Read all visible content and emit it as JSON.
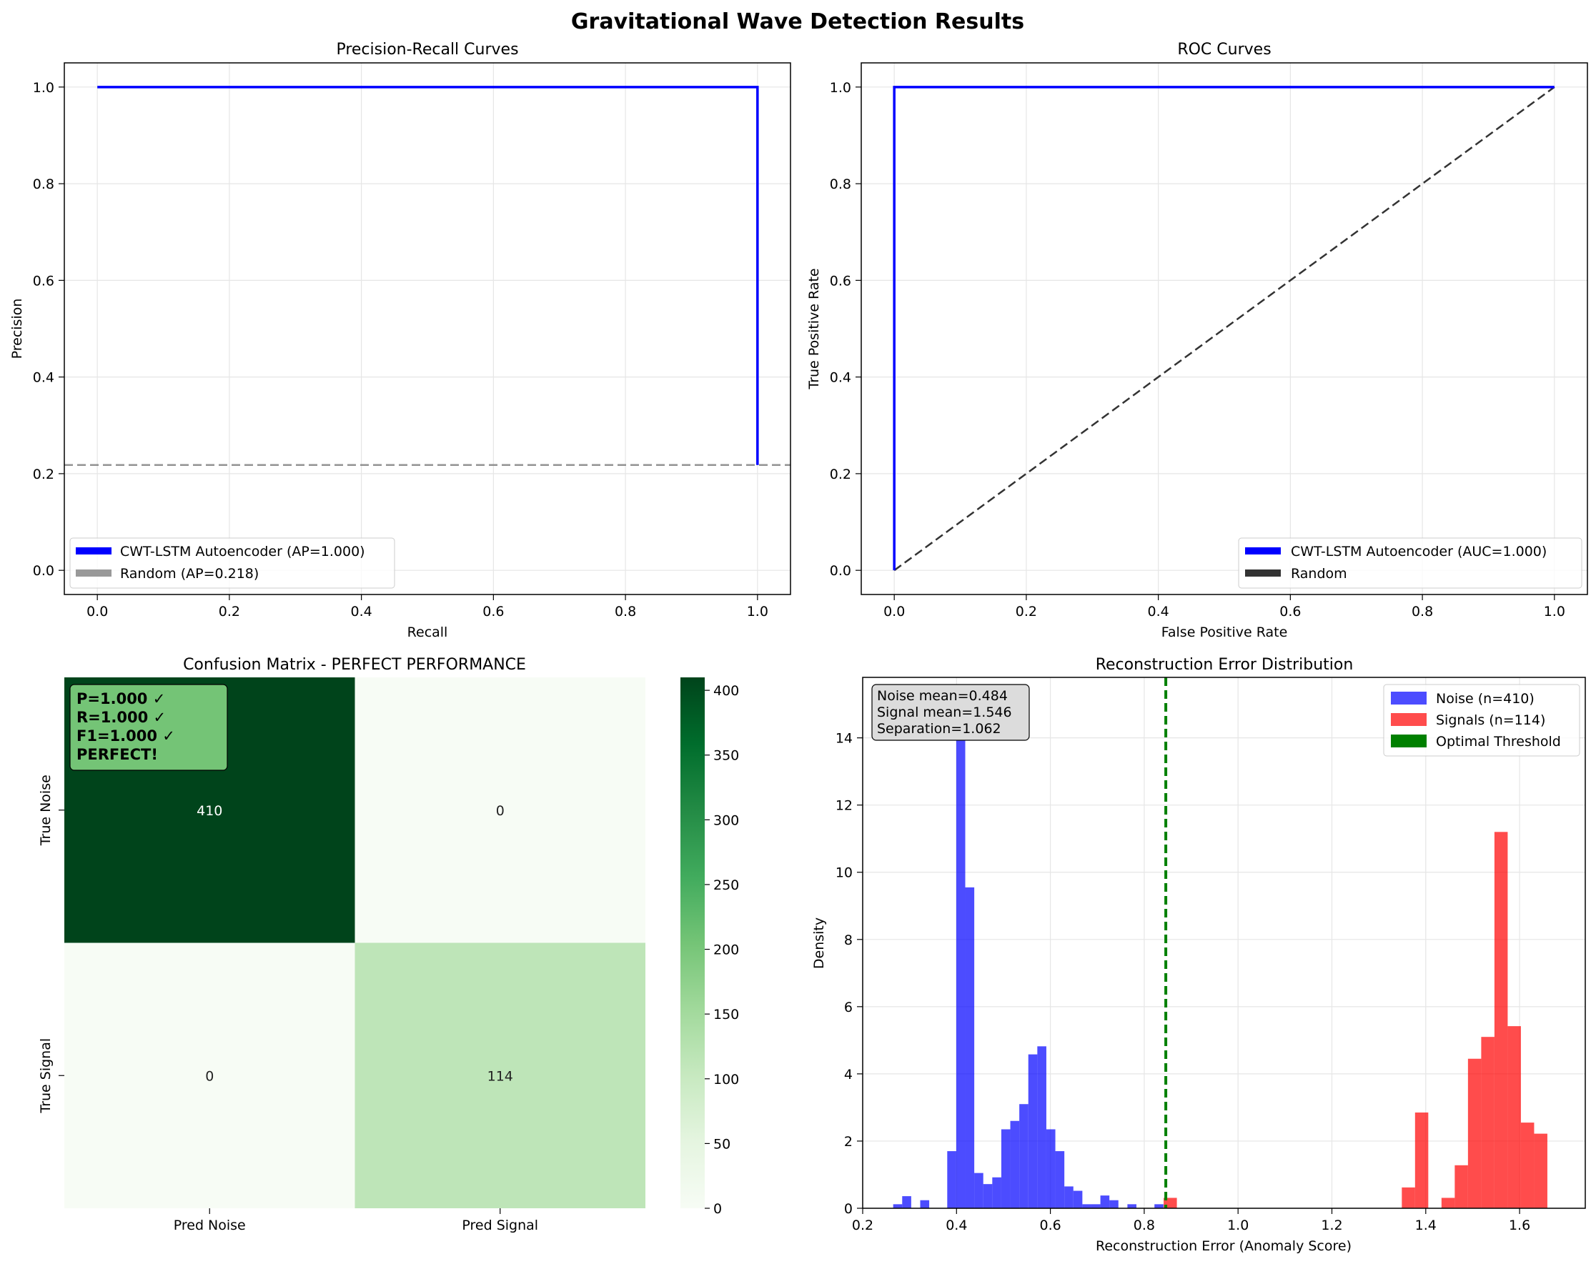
{
  "figure": {
    "title": "Gravitational Wave Detection Results"
  },
  "colors": {
    "blue": "#0000ff",
    "red": "#ff0000",
    "green": "#008000",
    "gray": "#808080",
    "darkgray": "#333333",
    "grid": "#e6e6e6"
  },
  "chart_data": [
    {
      "id": "pr",
      "type": "line",
      "title": "Precision-Recall Curves",
      "xlabel": "Recall",
      "ylabel": "Precision",
      "xlim": [
        -0.05,
        1.05
      ],
      "ylim": [
        -0.05,
        1.05
      ],
      "xticks": [
        0.0,
        0.2,
        0.4,
        0.6,
        0.8,
        1.0
      ],
      "yticks": [
        0.0,
        0.2,
        0.4,
        0.6,
        0.8,
        1.0
      ],
      "tick_labels_x": [
        "0.0",
        "0.2",
        "0.4",
        "0.6",
        "0.8",
        "1.0"
      ],
      "tick_labels_y": [
        "0.0",
        "0.2",
        "0.4",
        "0.6",
        "0.8",
        "1.0"
      ],
      "grid": true,
      "legend_position": "lower-left",
      "series": [
        {
          "name": "CWT-LSTM Autoencoder (AP=1.000)",
          "color": "#0000ff",
          "style": "solid",
          "x": [
            0.0,
            1.0,
            1.0
          ],
          "y": [
            1.0,
            1.0,
            0.218
          ]
        },
        {
          "name": "Random (AP=0.218)",
          "color": "#808080",
          "style": "dashed",
          "hline": 0.218
        }
      ]
    },
    {
      "id": "roc",
      "type": "line",
      "title": "ROC Curves",
      "xlabel": "False Positive Rate",
      "ylabel": "True Positive Rate",
      "xlim": [
        -0.05,
        1.05
      ],
      "ylim": [
        -0.05,
        1.05
      ],
      "xticks": [
        0.0,
        0.2,
        0.4,
        0.6,
        0.8,
        1.0
      ],
      "yticks": [
        0.0,
        0.2,
        0.4,
        0.6,
        0.8,
        1.0
      ],
      "tick_labels_x": [
        "0.0",
        "0.2",
        "0.4",
        "0.6",
        "0.8",
        "1.0"
      ],
      "tick_labels_y": [
        "0.0",
        "0.2",
        "0.4",
        "0.6",
        "0.8",
        "1.0"
      ],
      "grid": true,
      "legend_position": "lower-right",
      "series": [
        {
          "name": "CWT-LSTM Autoencoder (AUC=1.000)",
          "color": "#0000ff",
          "style": "solid",
          "x": [
            0.0,
            0.0,
            1.0
          ],
          "y": [
            0.0,
            1.0,
            1.0
          ]
        },
        {
          "name": "Random",
          "color": "#333333",
          "style": "dashed",
          "x": [
            0.0,
            1.0
          ],
          "y": [
            0.0,
            1.0
          ]
        }
      ]
    },
    {
      "id": "cm",
      "type": "heatmap",
      "title": "Confusion Matrix - PERFECT PERFORMANCE",
      "row_labels": [
        "True Noise",
        "True Signal"
      ],
      "col_labels": [
        "Pred Noise",
        "Pred Signal"
      ],
      "values": [
        [
          410,
          0
        ],
        [
          0,
          114
        ]
      ],
      "cell_text": [
        [
          "410",
          "0"
        ],
        [
          "0",
          "114"
        ]
      ],
      "colorbar": {
        "min": 0,
        "max": 410,
        "ticks": [
          0,
          50,
          100,
          150,
          200,
          250,
          300,
          350,
          400
        ],
        "tick_labels": [
          "0",
          "50",
          "100",
          "150",
          "200",
          "250",
          "300",
          "350",
          "400"
        ]
      },
      "annotation": [
        "P=1.000 ✓",
        "R=1.000 ✓",
        "F1=1.000 ✓",
        "PERFECT!"
      ]
    },
    {
      "id": "hist",
      "type": "bar",
      "title": "Reconstruction Error Distribution",
      "xlabel": "Reconstruction Error (Anomaly Score)",
      "ylabel": "Density",
      "xlim": [
        0.2,
        1.74
      ],
      "ylim": [
        0,
        15.8
      ],
      "xticks": [
        0.2,
        0.4,
        0.6,
        0.8,
        1.0,
        1.2,
        1.4,
        1.6
      ],
      "yticks": [
        0,
        2,
        4,
        6,
        8,
        10,
        12,
        14
      ],
      "tick_labels_x": [
        "0.2",
        "0.4",
        "0.6",
        "0.8",
        "1.0",
        "1.2",
        "1.4",
        "1.6"
      ],
      "tick_labels_y": [
        "0",
        "2",
        "4",
        "6",
        "8",
        "10",
        "12",
        "14"
      ],
      "grid": true,
      "legend_position": "upper-right",
      "threshold": 0.846,
      "annotation": [
        "Noise mean=0.484",
        "Signal mean=1.546",
        "Separation=1.062"
      ],
      "legend": [
        "Noise (n=410)",
        "Signals (n=114)",
        "Optimal Threshold"
      ],
      "series": [
        {
          "name": "Noise (n=410)",
          "color": "#0000ff",
          "bin_width": 0.0192,
          "edges": [
            0.265,
            0.2842,
            0.3034,
            0.3226,
            0.3418,
            0.361,
            0.3802,
            0.3994,
            0.4186,
            0.4378,
            0.457,
            0.4762,
            0.4954,
            0.5146,
            0.5338,
            0.553,
            0.5722,
            0.5914,
            0.6106,
            0.6298,
            0.649,
            0.6682,
            0.6874,
            0.7066,
            0.7258,
            0.745,
            0.7642,
            0.7834,
            0.8026,
            0.8218
          ],
          "values": [
            0.12,
            0.36,
            0.0,
            0.24,
            0.0,
            0.0,
            1.7,
            15.1,
            9.55,
            1.05,
            0.72,
            0.92,
            2.35,
            2.6,
            3.1,
            4.58,
            4.82,
            2.35,
            1.7,
            0.65,
            0.52,
            0.12,
            0.12,
            0.38,
            0.24,
            0.0,
            0.12,
            0.0,
            0.0,
            0.12
          ]
        },
        {
          "name": "Signals (n=114)",
          "color": "#ff0000",
          "bin_width": 0.0282,
          "edges": [
            0.8414,
            0.8696,
            0.8978,
            0.926,
            0.9542,
            0.9824,
            1.0106,
            1.0388,
            1.067,
            1.0952,
            1.1234,
            1.1516,
            1.1798,
            1.208,
            1.2362,
            1.2644,
            1.2926,
            1.3208,
            1.349,
            1.3772,
            1.4054,
            1.4336,
            1.4618,
            1.49,
            1.5182,
            1.5464,
            1.5746,
            1.6028,
            1.631
          ],
          "values": [
            0.31,
            0,
            0,
            0,
            0,
            0,
            0,
            0,
            0,
            0,
            0,
            0,
            0,
            0,
            0,
            0,
            0,
            0,
            0.62,
            2.85,
            0,
            0.31,
            1.28,
            4.45,
            5.1,
            11.2,
            5.42,
            2.55,
            2.22
          ]
        }
      ]
    }
  ]
}
